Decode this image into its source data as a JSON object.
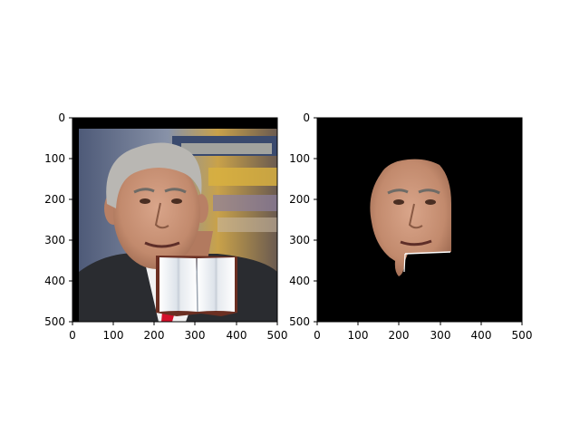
{
  "figure": {
    "panels": [
      {
        "name": "original-photo",
        "description_visible": "photo of a gray-haired man in a suit with a red tie, an open-book occluder overlaid on his lower face",
        "xticks": [
          "0",
          "100",
          "200",
          "300",
          "400",
          "500"
        ],
        "yticks": [
          "0",
          "100",
          "200",
          "300",
          "400",
          "500"
        ]
      },
      {
        "name": "segmented-face",
        "description_visible": "segmented face region of the same man on a black background, with the occluded area cut out",
        "xticks": [
          "0",
          "100",
          "200",
          "300",
          "400",
          "500"
        ],
        "yticks": [
          "0",
          "100",
          "200",
          "300",
          "400",
          "500"
        ]
      }
    ]
  },
  "colors": {
    "axis": "#000000",
    "mask_background": "#000000",
    "skin": "#c99478",
    "hair": "#b9b7b3",
    "suit": "#2a2c30",
    "tie": "#d4102a",
    "shirt": "#f2f2f2",
    "book_page": "#f4f6f8",
    "book_edge": "#6b2f22"
  }
}
